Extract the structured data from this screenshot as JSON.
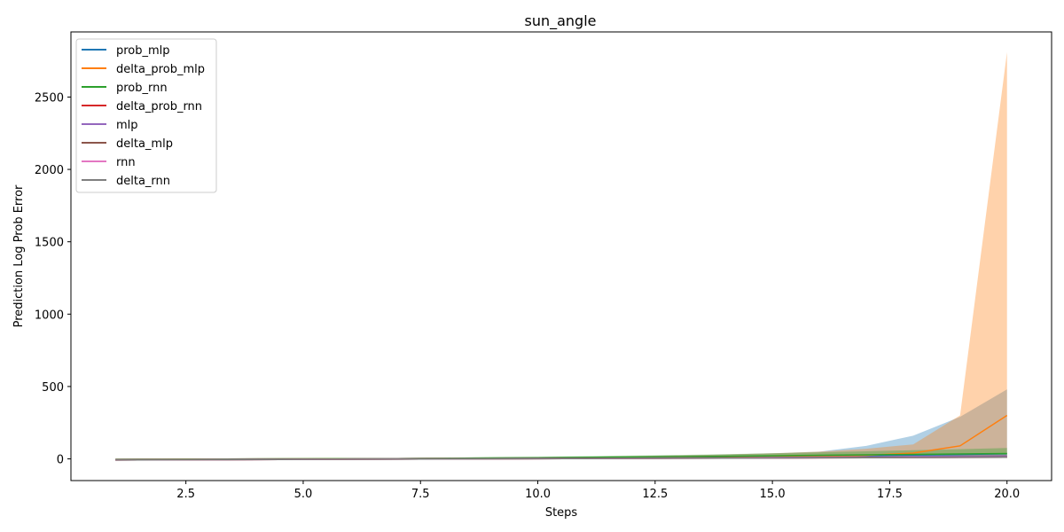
{
  "chart_data": {
    "type": "area",
    "title": "sun_angle",
    "xlabel": "Steps",
    "ylabel": "Prediction Log Prob Error",
    "xlim": [
      0.05,
      20.95
    ],
    "ylim": [
      -150,
      2950
    ],
    "xticks": [
      2.5,
      5.0,
      7.5,
      10.0,
      12.5,
      15.0,
      17.5,
      20.0
    ],
    "xtick_labels": [
      "2.5",
      "5.0",
      "7.5",
      "10.0",
      "12.5",
      "15.0",
      "17.5",
      "20.0"
    ],
    "yticks": [
      0,
      500,
      1000,
      1500,
      2000,
      2500
    ],
    "ytick_labels": [
      "0",
      "500",
      "1000",
      "1500",
      "2000",
      "2500"
    ],
    "legend_position": "top-left",
    "x": [
      1,
      2,
      3,
      4,
      5,
      6,
      7,
      8,
      9,
      10,
      11,
      12,
      13,
      14,
      15,
      16,
      17,
      18,
      19,
      20
    ],
    "series": [
      {
        "name": "prob_mlp",
        "color": "#1f77b4",
        "values": [
          -4,
          -3,
          -2,
          -1,
          0,
          1,
          2,
          3,
          4,
          5,
          6,
          8,
          10,
          12,
          15,
          18,
          22,
          26,
          30,
          35
        ],
        "band_low": [
          -12,
          -11,
          -10,
          -9,
          -8,
          -7,
          -6,
          -5,
          -4,
          -3,
          -2,
          -1,
          0,
          1,
          2,
          3,
          4,
          5,
          6,
          7
        ],
        "band_high": [
          -6,
          -5,
          -4,
          -2,
          0,
          2,
          4,
          6,
          9,
          12,
          15,
          19,
          24,
          30,
          38,
          50,
          90,
          160,
          290,
          480
        ]
      },
      {
        "name": "delta_prob_mlp",
        "color": "#ff7f0e",
        "values": [
          -4,
          -3,
          -2,
          -1,
          0,
          1,
          2,
          3,
          4,
          5,
          6,
          8,
          10,
          12,
          14,
          18,
          25,
          40,
          90,
          300
        ],
        "band_low": [
          -12,
          -11,
          -10,
          -9,
          -8,
          -7,
          -6,
          -5,
          -4,
          -3,
          -2,
          -1,
          0,
          1,
          2,
          3,
          4,
          5,
          6,
          7
        ],
        "band_high": [
          -6,
          -5,
          -4,
          -2,
          0,
          2,
          4,
          6,
          9,
          12,
          15,
          19,
          24,
          30,
          38,
          50,
          70,
          100,
          300,
          2810
        ]
      },
      {
        "name": "prob_rnn",
        "color": "#2ca02c",
        "values": [
          -4,
          -3,
          -2,
          -1,
          0,
          1,
          2,
          4,
          6,
          8,
          10,
          12,
          15,
          18,
          21,
          25,
          28,
          31,
          34,
          37
        ],
        "band_low": [
          -12,
          -11,
          -10,
          -9,
          -8,
          -7,
          -6,
          -5,
          -4,
          -3,
          -2,
          -1,
          0,
          1,
          2,
          3,
          4,
          5,
          6,
          7
        ],
        "band_high": [
          -6,
          -4,
          -2,
          0,
          2,
          4,
          6,
          9,
          12,
          15,
          19,
          23,
          27,
          32,
          38,
          45,
          52,
          60,
          67,
          75
        ]
      },
      {
        "name": "delta_prob_rnn",
        "color": "#d62728",
        "values": [
          -8,
          -7,
          -6,
          -5,
          -4,
          -3,
          -2,
          -1,
          0,
          1,
          2,
          3,
          4,
          5,
          6,
          7,
          8,
          9,
          10,
          11
        ],
        "band_low": [
          -12,
          -11,
          -10,
          -9,
          -8,
          -7,
          -6,
          -5,
          -4,
          -3,
          -2,
          -1,
          0,
          1,
          2,
          3,
          4,
          5,
          6,
          7
        ],
        "band_high": [
          -4,
          -3,
          -2,
          -1,
          0,
          1,
          2,
          3,
          4,
          5,
          6,
          7,
          8,
          9,
          10,
          11,
          12,
          13,
          14,
          15
        ]
      },
      {
        "name": "mlp",
        "color": "#9467bd",
        "values": [
          -6,
          -5,
          -4,
          -3,
          -2,
          -1,
          0,
          1,
          2,
          3,
          4,
          5,
          6,
          8,
          10,
          12,
          14,
          16,
          18,
          20
        ],
        "band_low": [
          -10,
          -9,
          -8,
          -7,
          -6,
          -5,
          -4,
          -3,
          -2,
          -1,
          0,
          1,
          2,
          3,
          4,
          5,
          6,
          7,
          8,
          9
        ],
        "band_high": [
          -3,
          -2,
          -1,
          0,
          1,
          2,
          3,
          4,
          5,
          6,
          8,
          10,
          12,
          14,
          16,
          18,
          20,
          22,
          25,
          28
        ]
      },
      {
        "name": "delta_mlp",
        "color": "#8c564b",
        "values": [
          -6,
          -5,
          -4,
          -3,
          -2,
          -1,
          0,
          1,
          2,
          3,
          4,
          5,
          6,
          7,
          8,
          9,
          10,
          11,
          12,
          13
        ],
        "band_low": [
          -10,
          -9,
          -8,
          -7,
          -6,
          -5,
          -4,
          -3,
          -2,
          -1,
          0,
          1,
          2,
          3,
          4,
          5,
          6,
          7,
          8,
          9
        ],
        "band_high": [
          -3,
          -2,
          -1,
          0,
          1,
          2,
          3,
          4,
          5,
          6,
          7,
          8,
          9,
          10,
          11,
          12,
          13,
          14,
          15,
          16
        ]
      },
      {
        "name": "rnn",
        "color": "#e377c2",
        "values": [
          -8,
          -7,
          -6,
          -5,
          -4,
          -3,
          -2,
          -1,
          0,
          1,
          2,
          3,
          4,
          5,
          6,
          7,
          8,
          9,
          10,
          11
        ],
        "band_low": [
          -12,
          -11,
          -10,
          -9,
          -8,
          -7,
          -6,
          -5,
          -4,
          -3,
          -2,
          -1,
          0,
          1,
          2,
          3,
          4,
          5,
          6,
          7
        ],
        "band_high": [
          -5,
          -4,
          -3,
          -2,
          -1,
          0,
          1,
          2,
          3,
          4,
          5,
          6,
          7,
          8,
          9,
          10,
          11,
          12,
          13,
          14
        ]
      },
      {
        "name": "delta_rnn",
        "color": "#7f7f7f",
        "values": [
          -8,
          -7,
          -6,
          -5,
          -4,
          -3,
          -2,
          -1,
          0,
          1,
          2,
          3,
          4,
          5,
          6,
          7,
          8,
          9,
          10,
          11
        ],
        "band_low": [
          -12,
          -11,
          -10,
          -9,
          -8,
          -7,
          -6,
          -5,
          -4,
          -3,
          -2,
          -1,
          0,
          1,
          2,
          3,
          4,
          5,
          6,
          7
        ],
        "band_high": [
          -5,
          -4,
          -3,
          -2,
          -1,
          0,
          1,
          2,
          3,
          4,
          5,
          6,
          7,
          8,
          9,
          10,
          11,
          12,
          13,
          14
        ]
      }
    ]
  }
}
